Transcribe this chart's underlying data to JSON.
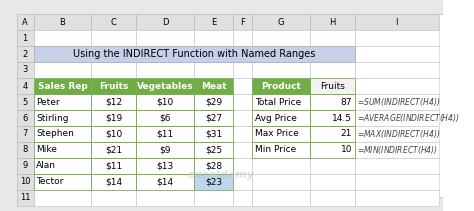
{
  "title": "Using the INDIRECT Function with Named Ranges",
  "title_bg": "#c6d0e8",
  "col_headers": [
    "A",
    "B",
    "C",
    "D",
    "E",
    "F",
    "G",
    "H",
    "I"
  ],
  "row_numbers": [
    "1",
    "2",
    "3",
    "4",
    "5",
    "6",
    "7",
    "8",
    "9",
    "10",
    "11"
  ],
  "left_table_headers": [
    "Sales Rep",
    "Fruits",
    "Vegetables",
    "Meat"
  ],
  "left_table_header_bg": "#70ad47",
  "left_table_data": [
    [
      "Peter",
      "$12",
      "$10",
      "$29"
    ],
    [
      "Stirling",
      "$19",
      "$6",
      "$27"
    ],
    [
      "Stephen",
      "$10",
      "$11",
      "$31"
    ],
    [
      "Mike",
      "$21",
      "$9",
      "$25"
    ],
    [
      "Alan",
      "$11",
      "$13",
      "$28"
    ],
    [
      "Tector",
      "$14",
      "$14",
      "$23"
    ]
  ],
  "right_table_headers": [
    "Product",
    "Fruits"
  ],
  "right_table_header_bg": "#70ad47",
  "right_table_data": [
    [
      "Total Price",
      "87",
      "=SUM(INDIRECT($H$4))"
    ],
    [
      "Avg Price",
      "14.5",
      "=AVERAGE(INDIRECT($H$4))"
    ],
    [
      "Max Price",
      "21",
      "=MAX(INDIRECT($H$4))"
    ],
    [
      "Min Price",
      "10",
      "=MIN(INDIRECT($H$4))"
    ]
  ],
  "highlight_cell": "$23",
  "highlight_color": "#bdd7ee",
  "grid_line_color": "#999999",
  "header_row_color": "#f2f2f2",
  "bg_color": "#ffffff",
  "border_color": "#70ad47",
  "watermark": "exceldemy"
}
